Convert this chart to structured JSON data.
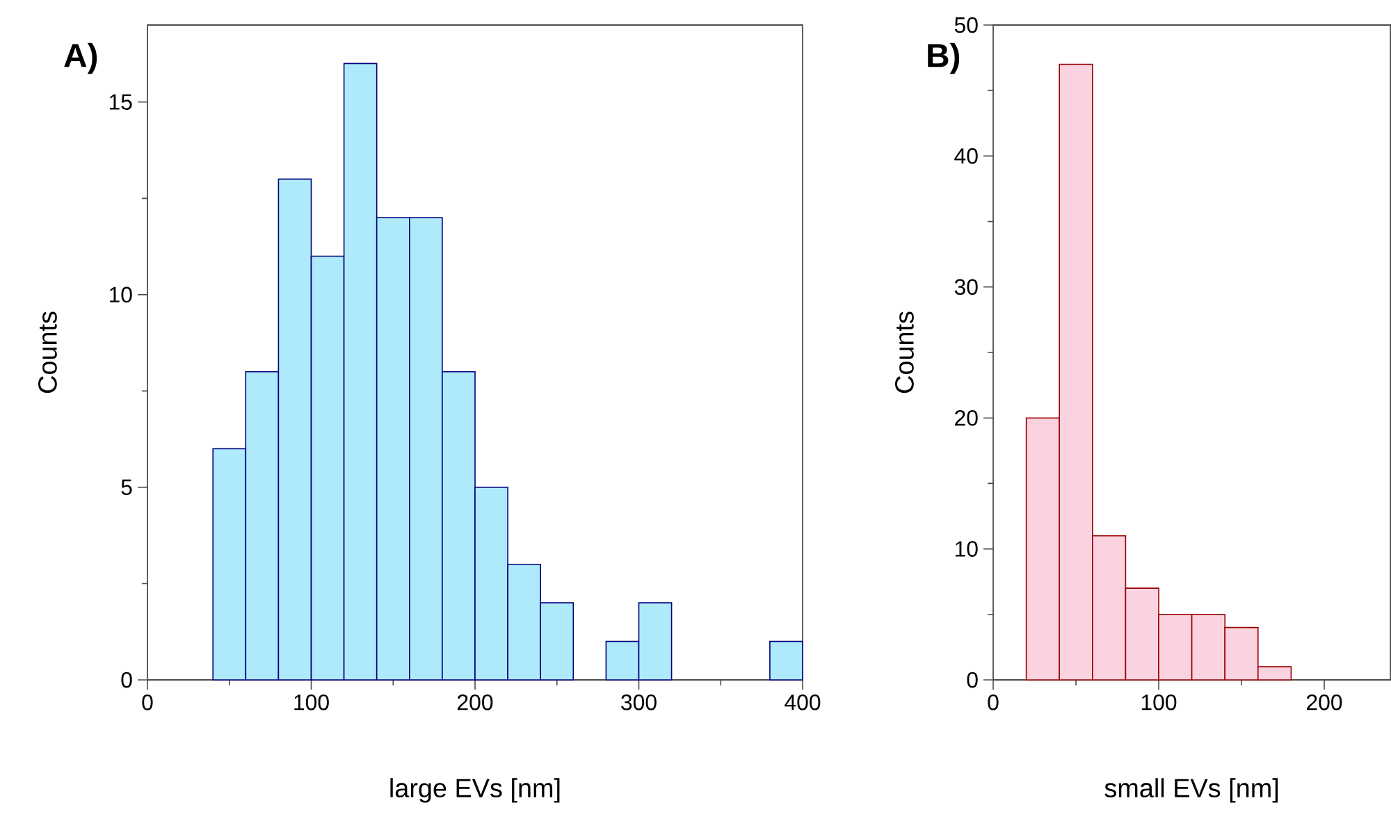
{
  "chart_data": [
    {
      "type": "histogram",
      "xlabel": "large EVs [nm]",
      "ylabel": "Counts",
      "annotations": [
        "A)"
      ],
      "bins": [
        40,
        60,
        80,
        100,
        120,
        140,
        160,
        180,
        200,
        220,
        240,
        260,
        280,
        300,
        320,
        340,
        360,
        380,
        400
      ],
      "values": [
        6,
        8,
        13,
        11,
        16,
        12,
        12,
        8,
        5,
        3,
        2,
        0,
        1,
        2,
        0,
        0,
        0,
        1
      ],
      "color": "#aeeafc",
      "xlim": [
        0,
        400
      ],
      "xticks": [
        0,
        100,
        200,
        300,
        400
      ],
      "ylim": [
        0,
        17
      ],
      "yticks": [
        0,
        5,
        10,
        15
      ],
      "grid": false
    },
    {
      "type": "histogram",
      "xlabel": "small EVs [nm]",
      "ylabel": "Counts",
      "annotations": [
        "B)"
      ],
      "bins": [
        20,
        40,
        60,
        80,
        100,
        120,
        140,
        160,
        180
      ],
      "values": [
        20,
        47,
        11,
        7,
        5,
        5,
        4,
        1
      ],
      "color": "#fbd3e0",
      "xlim": [
        0,
        240
      ],
      "xticks": [
        0,
        100,
        200
      ],
      "ylim": [
        0,
        50
      ],
      "yticks": [
        0,
        10,
        20,
        30,
        40,
        50
      ],
      "grid": false
    }
  ]
}
